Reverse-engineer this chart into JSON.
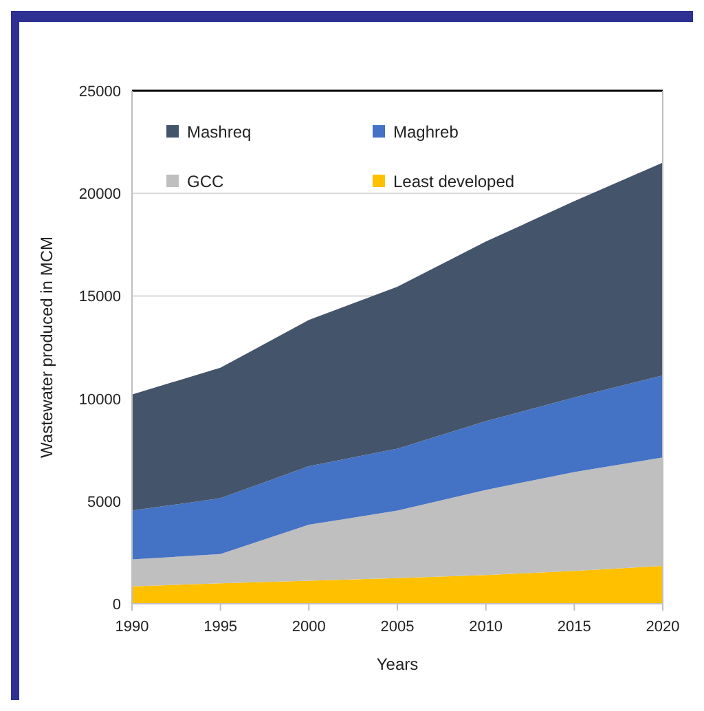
{
  "chart_data": {
    "type": "area",
    "stacked": true,
    "xlabel": "Years",
    "ylabel": "Wastewater produced in MCM",
    "x": [
      1990,
      1995,
      2000,
      2005,
      2010,
      2015,
      2020
    ],
    "xlim": [
      1990,
      2020
    ],
    "xticks": [
      1990,
      1995,
      2000,
      2005,
      2010,
      2015,
      2020
    ],
    "ylim": [
      0,
      25000
    ],
    "yticks": [
      0,
      5000,
      10000,
      15000,
      20000,
      25000
    ],
    "grid": "y",
    "legend": "top left",
    "series": [
      {
        "name": "Least developed",
        "color": "#ffc000",
        "values": [
          850,
          1000,
          1120,
          1250,
          1400,
          1600,
          1840
        ]
      },
      {
        "name": "GCC",
        "color": "#bfbfbf",
        "values": [
          1310,
          1420,
          2730,
          3290,
          4150,
          4820,
          5290
        ]
      },
      {
        "name": "Maghreb",
        "color": "#4472c4",
        "values": [
          2380,
          2720,
          2850,
          3020,
          3350,
          3630,
          4000
        ]
      },
      {
        "name": "Mashreq",
        "color": "#44546a",
        "values": [
          5660,
          6360,
          7130,
          7890,
          8750,
          9570,
          10370
        ]
      }
    ]
  }
}
